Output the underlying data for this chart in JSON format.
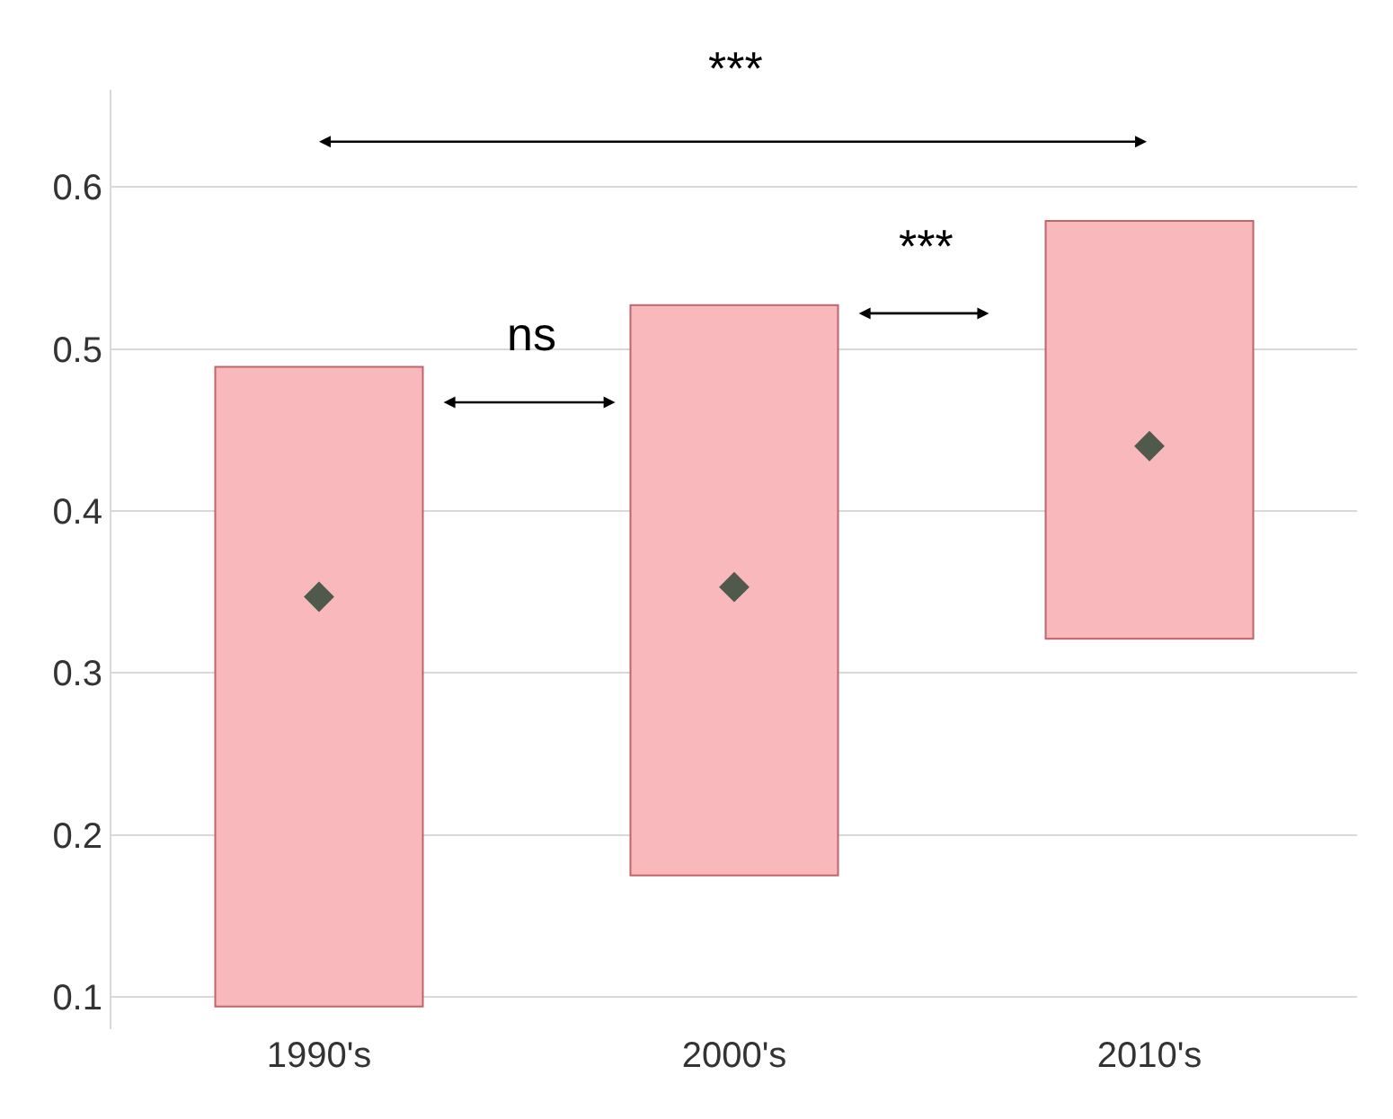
{
  "chart_data": {
    "type": "bar",
    "categories": [
      "1990's",
      "2000's",
      "2010's"
    ],
    "series": [
      {
        "color": "#f9b8bc",
        "values": [
          0.395,
          0.352,
          0.258
        ],
        "base": [
          0.094,
          0.175,
          0.321
        ]
      },
      {
        "type": "scatter",
        "x": [
          "1990's",
          "2000's",
          "2010's"
        ],
        "values": [
          0.347,
          0.353,
          0.44
        ],
        "color": "#4f5a4c"
      }
    ],
    "marker": "diamond",
    "ylim": [
      0.08,
      0.66
    ],
    "yticks": [
      0.1,
      0.2,
      0.3,
      0.4,
      0.5,
      0.6
    ],
    "grid": "y",
    "annotations": [
      "***",
      "ns",
      "***"
    ]
  }
}
